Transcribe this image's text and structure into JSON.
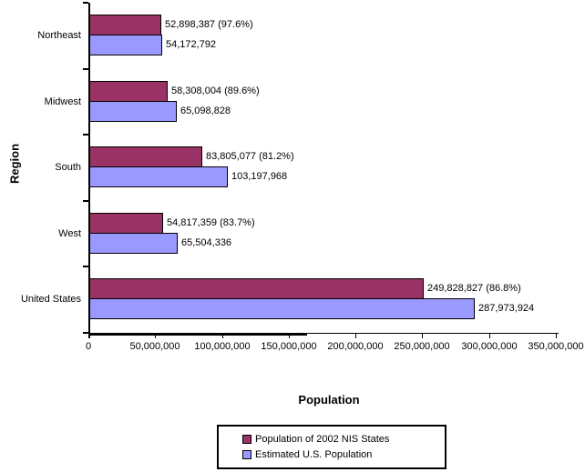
{
  "chart_data": {
    "type": "bar",
    "orientation": "horizontal",
    "title": "",
    "xlabel": "Population",
    "ylabel": "Region",
    "xlim": [
      0,
      350000000
    ],
    "grid": false,
    "legend_position": "bottom",
    "xtick_labels": [
      "0",
      "50,000,000",
      "100,000,000",
      "150,000,000",
      "200,000,000",
      "250,000,000",
      "300,000,000",
      "350,000,000"
    ],
    "categories": [
      "Northeast",
      "Midwest",
      "South",
      "West",
      "United States"
    ],
    "series": [
      {
        "name": "Population of 2002 NIS States",
        "color": "#993366",
        "values": [
          52898387,
          58308004,
          83805077,
          54817359,
          249828827
        ],
        "percentages": [
          97.6,
          89.6,
          81.2,
          83.7,
          86.8
        ],
        "bar_labels": [
          "52,898,387 (97.6%)",
          "58,308,004 (89.6%)",
          "83,805,077 (81.2%)",
          "54,817,359 (83.7%)",
          "249,828,827 (86.8%)"
        ]
      },
      {
        "name": "Estimated U.S. Population",
        "color": "#9999FF",
        "values": [
          54172792,
          65098828,
          103197968,
          65504336,
          287973924
        ],
        "bar_labels": [
          "54,172,792",
          "65,098,828",
          "103,197,968",
          "65,504,336",
          "287,973,924"
        ]
      }
    ]
  },
  "colors": {
    "bar_border": "#000000",
    "axis": "#000000",
    "text": "#000000",
    "background": "#ffffff"
  }
}
